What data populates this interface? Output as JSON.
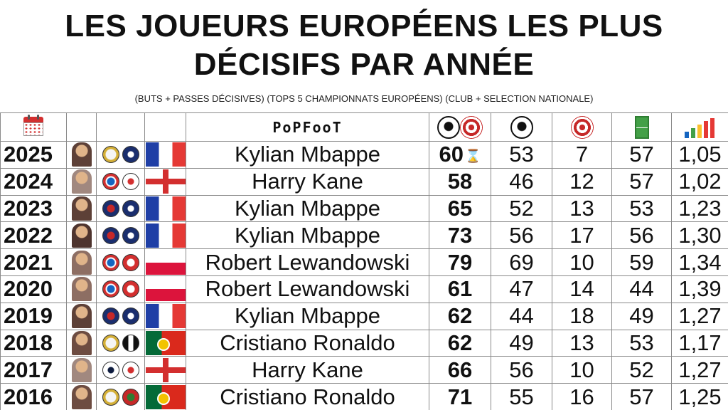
{
  "title": {
    "line1": "LES JOUEURS EUROPÉENS LES PLUS",
    "line2": "DÉCISIFS PAR ANNÉE"
  },
  "subtitle": "(BUTS + PASSES DÉCISIVES) (TOPS 5 CHAMPIONNATS EUROPÉENS) (CLUB + SELECTION NATIONALE)",
  "brand": "PoPFooT",
  "header_icons": [
    "calendar-icon",
    "ball-target-icon",
    "ball-icon",
    "target-icon",
    "pitch-icon",
    "growth-bars-icon"
  ],
  "rows": [
    {
      "year": "2025",
      "player": "Kylian Mbappe",
      "total": "60",
      "goals": "53",
      "assists": "7",
      "matches": "57",
      "ratio": "1,05",
      "club": "real",
      "nation_crest": "fra",
      "flag": "fra",
      "photo": "#5d4037",
      "ongoing": true
    },
    {
      "year": "2024",
      "player": "Harry Kane",
      "total": "58",
      "goals": "46",
      "assists": "12",
      "matches": "57",
      "ratio": "1,02",
      "club": "bayern",
      "nation_crest": "eng",
      "flag": "eng",
      "photo": "#a1887f",
      "ongoing": false
    },
    {
      "year": "2023",
      "player": "Kylian Mbappe",
      "total": "65",
      "goals": "52",
      "assists": "13",
      "matches": "53",
      "ratio": "1,23",
      "club": "psg",
      "nation_crest": "fra",
      "flag": "fra",
      "photo": "#5d4037",
      "ongoing": false
    },
    {
      "year": "2022",
      "player": "Kylian Mbappe",
      "total": "73",
      "goals": "56",
      "assists": "17",
      "matches": "56",
      "ratio": "1,30",
      "club": "psg",
      "nation_crest": "fra",
      "flag": "fra",
      "photo": "#4e342e",
      "ongoing": false
    },
    {
      "year": "2021",
      "player": "Robert Lewandowski",
      "total": "79",
      "goals": "69",
      "assists": "10",
      "matches": "59",
      "ratio": "1,34",
      "club": "bayern",
      "nation_crest": "pol",
      "flag": "pol",
      "photo": "#8d6e63",
      "ongoing": false
    },
    {
      "year": "2020",
      "player": "Robert Lewandowski",
      "total": "61",
      "goals": "47",
      "assists": "14",
      "matches": "44",
      "ratio": "1,39",
      "club": "bayern",
      "nation_crest": "pol",
      "flag": "pol",
      "photo": "#8d6e63",
      "ongoing": false
    },
    {
      "year": "2019",
      "player": "Kylian Mbappe",
      "total": "62",
      "goals": "44",
      "assists": "18",
      "matches": "49",
      "ratio": "1,27",
      "club": "psg",
      "nation_crest": "fra",
      "flag": "fra",
      "photo": "#5d4037",
      "ongoing": false
    },
    {
      "year": "2018",
      "player": "Cristiano Ronaldo",
      "total": "62",
      "goals": "49",
      "assists": "13",
      "matches": "53",
      "ratio": "1,17",
      "club": "real",
      "club2": "juve",
      "nation_crest": "por",
      "flag": "por",
      "photo": "#6d4c41",
      "ongoing": false
    },
    {
      "year": "2017",
      "player": "Harry Kane",
      "total": "66",
      "goals": "56",
      "assists": "10",
      "matches": "52",
      "ratio": "1,27",
      "club": "spurs",
      "nation_crest": "eng",
      "flag": "eng",
      "photo": "#a1887f",
      "ongoing": false
    },
    {
      "year": "2016",
      "player": "Cristiano Ronaldo",
      "total": "71",
      "goals": "55",
      "assists": "16",
      "matches": "57",
      "ratio": "1,25",
      "club": "real",
      "nation_crest": "por",
      "flag": "por",
      "photo": "#6d4c41",
      "ongoing": false
    }
  ]
}
